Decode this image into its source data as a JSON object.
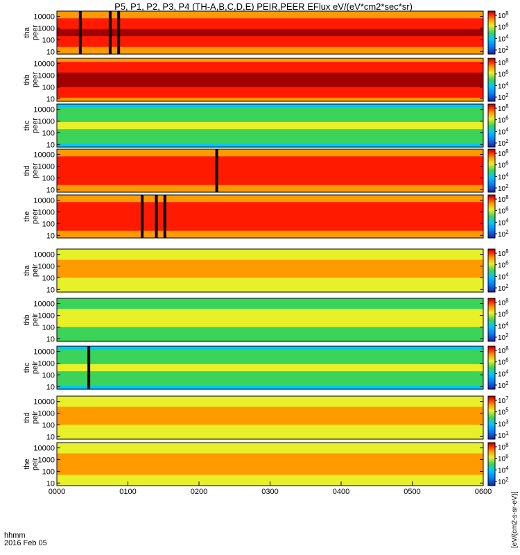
{
  "title": "P5, P1, P2, P3, P4 (TH-A,B,C,D,E) PEIR,PEER EFlux eV/(eV*cm2*sec*sr)",
  "time_axis": {
    "ticks": [
      "0000",
      "0100",
      "0200",
      "0300",
      "0400",
      "0500",
      "0600"
    ],
    "label_line1": "hhmm",
    "label_line2": "2016 Feb 05"
  },
  "colorbar_unit": "[eV/(cm2-s-sr-eV)]",
  "chart_data": {
    "type": "heatmap",
    "title": "P5, P1, P2, P3, P4 (TH-A,B,C,D,E) PEIR,PEER EFlux eV/(eV*cm2*sec*sr)",
    "x": {
      "range": [
        "0000",
        "0600"
      ],
      "unit": "hhmm",
      "date": "2016 Feb 05"
    },
    "y": {
      "scale": "log",
      "ticks": [
        10,
        100,
        1000,
        10000
      ]
    },
    "panels": [
      {
        "name": "tha peer",
        "colorbar": {
          "scale": "log",
          "ticks": [
            "10^2",
            "10^4",
            "10^6",
            "10^8"
          ]
        },
        "level": 0.82,
        "data_gaps_hours": [
          0.33,
          0.75,
          0.87
        ]
      },
      {
        "name": "thb peer",
        "colorbar": {
          "scale": "log",
          "ticks": [
            "10^2",
            "10^4",
            "10^6",
            "10^8"
          ]
        },
        "level": 0.85,
        "data_gaps_hours": []
      },
      {
        "name": "thc peer",
        "colorbar": {
          "scale": "log",
          "ticks": [
            "10^2",
            "10^4",
            "10^6",
            "10^8"
          ]
        },
        "level": 0.4,
        "data_gaps_hours": []
      },
      {
        "name": "thd peer",
        "colorbar": {
          "scale": "log",
          "ticks": [
            "10^2",
            "10^4",
            "10^6",
            "10^8"
          ]
        },
        "level": 0.8,
        "data_gaps_hours": [
          2.25
        ]
      },
      {
        "name": "the peer",
        "colorbar": {
          "scale": "log",
          "ticks": [
            "10^2",
            "10^4",
            "10^6",
            "10^8"
          ]
        },
        "level": 0.8,
        "data_gaps_hours": [
          1.2,
          1.4,
          1.52
        ]
      },
      {
        "name": "tha peir",
        "colorbar": {
          "scale": "log",
          "ticks": [
            "10^2",
            "10^4",
            "10^6",
            "10^8"
          ]
        },
        "level": 0.6,
        "data_gaps_hours": []
      },
      {
        "name": "thb peir",
        "colorbar": {
          "scale": "log",
          "ticks": [
            "10^2",
            "10^4",
            "10^6",
            "10^8"
          ]
        },
        "level": 0.45,
        "data_gaps_hours": []
      },
      {
        "name": "thc peir",
        "colorbar": {
          "scale": "log",
          "ticks": [
            "10^2",
            "10^4",
            "10^6",
            "10^8"
          ]
        },
        "level": 0.4,
        "data_gaps_hours": [
          0.45
        ]
      },
      {
        "name": "thd peir",
        "colorbar": {
          "scale": "log",
          "ticks": [
            "10^1",
            "10^3",
            "10^5",
            "10^7"
          ]
        },
        "level": 0.6,
        "data_gaps_hours": []
      },
      {
        "name": "the peir",
        "colorbar": {
          "scale": "log",
          "ticks": [
            "10^2",
            "10^4",
            "10^6",
            "10^8"
          ]
        },
        "level": 0.62,
        "data_gaps_hours": []
      }
    ]
  }
}
